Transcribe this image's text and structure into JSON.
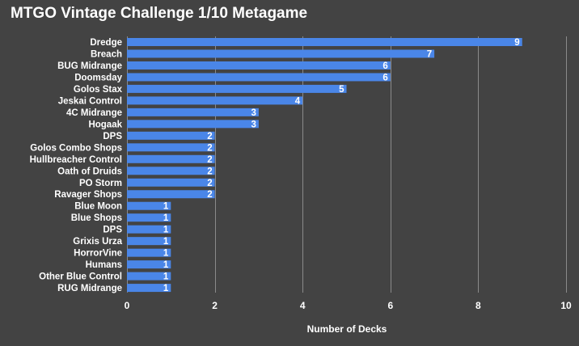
{
  "chart_data": {
    "type": "bar",
    "orientation": "horizontal",
    "title": "MTGO Vintage Challenge 1/10 Metagame",
    "xlabel": "Number of Decks",
    "ylabel": "",
    "xlim": [
      0,
      10
    ],
    "xticks": [
      0,
      2,
      4,
      6,
      8,
      10
    ],
    "grid": true,
    "legend": "none",
    "bar_color": "#4a86e8",
    "categories": [
      "Dredge",
      "Breach",
      "BUG Midrange",
      "Doomsday",
      "Golos Stax",
      "Jeskai Control",
      "4C Midrange",
      "Hogaak",
      "DPS",
      "Golos Combo Shops",
      "Hullbreacher Control",
      "Oath of Druids",
      "PO Storm",
      "Ravager Shops",
      "Blue Moon",
      "Blue Shops",
      "DPS",
      "Grixis Urza",
      "HorrorVine",
      "Humans",
      "Other Blue Control",
      "RUG Midrange"
    ],
    "values": [
      9,
      7,
      6,
      6,
      5,
      4,
      3,
      3,
      2,
      2,
      2,
      2,
      2,
      2,
      1,
      1,
      1,
      1,
      1,
      1,
      1,
      1
    ]
  }
}
